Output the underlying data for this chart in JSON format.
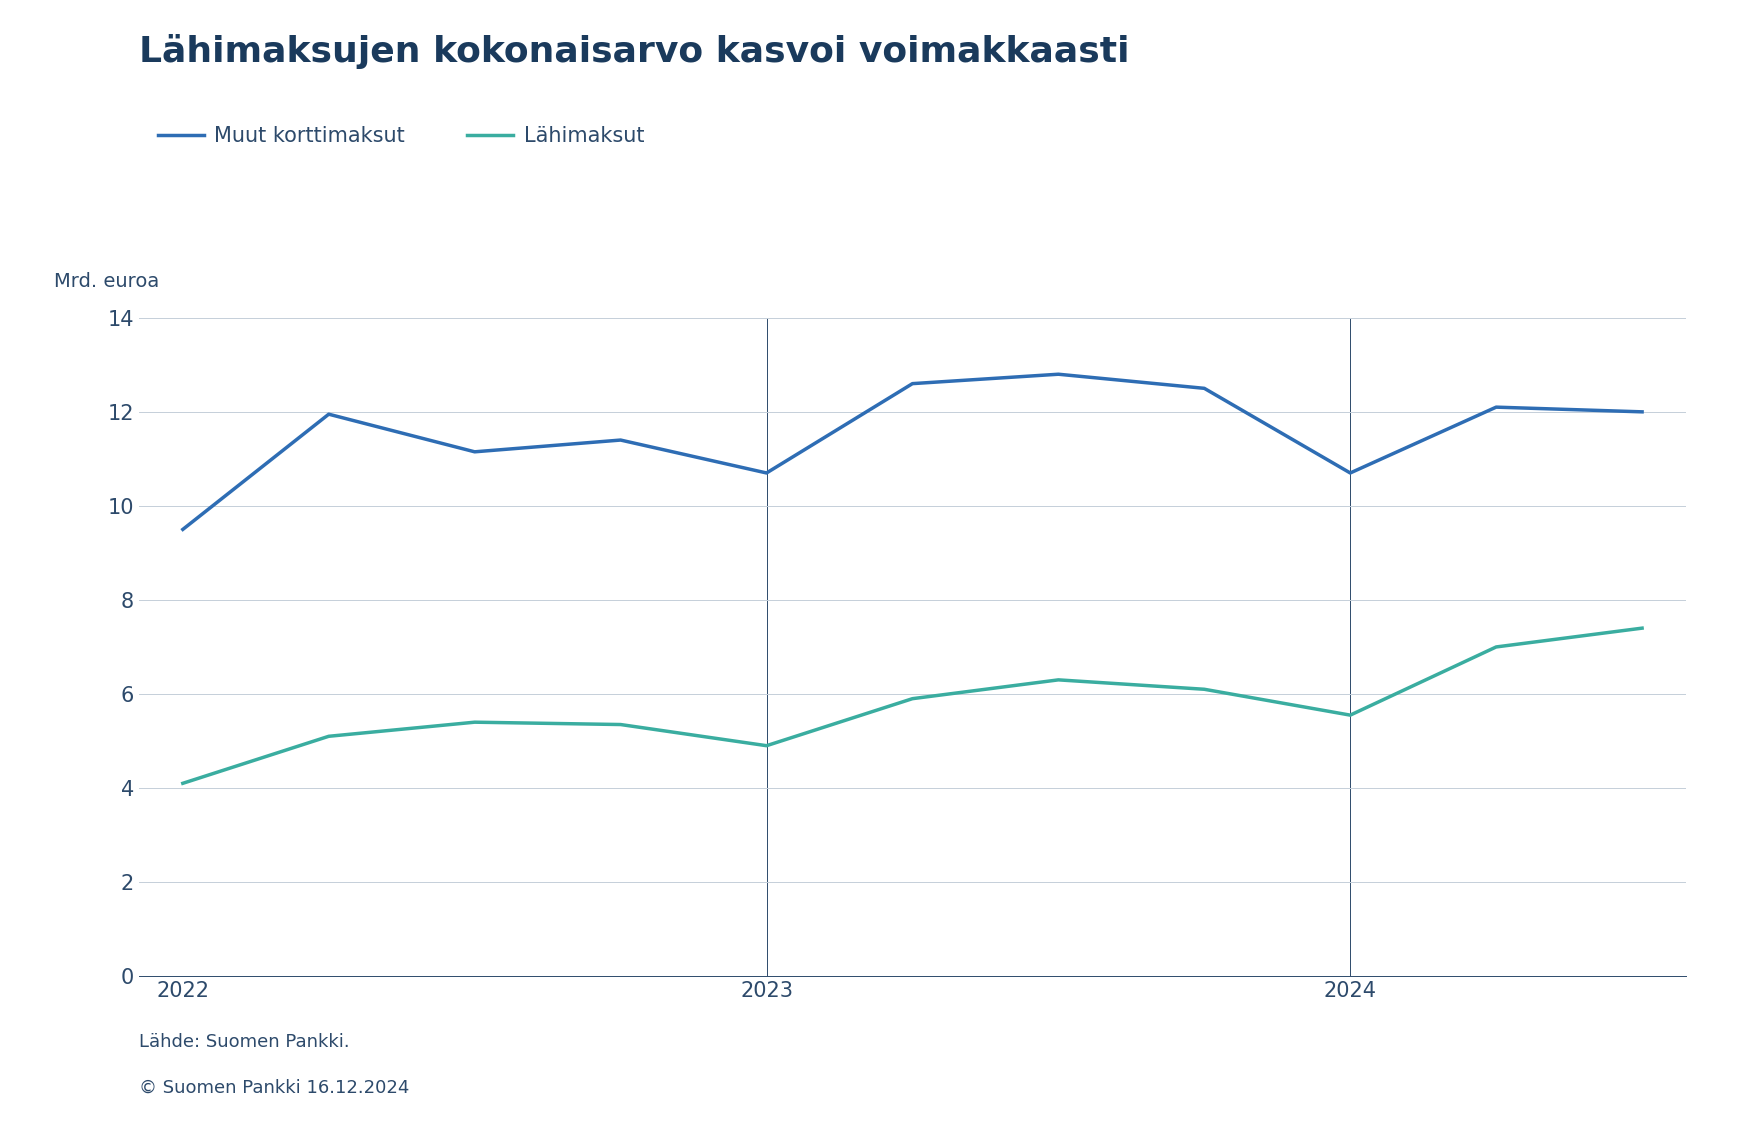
{
  "title": "Lähimaksujen kokonaisarvo kasvoi voimakkaasti",
  "ylabel": "Mrd. euroa",
  "background_color": "#ffffff",
  "plot_bg_color": "#ffffff",
  "title_color": "#1a3a5c",
  "text_color": "#2d4a6b",
  "axis_text_color": "#2d4a6b",
  "grid_color": "#c5cfd9",
  "vline_color": "#2d4a6b",
  "line1_label": "Muut korttimaksut",
  "line2_label": "Lähimaksut",
  "line1_color": "#2e6db4",
  "line2_color": "#3aada0",
  "ylim": [
    0,
    14
  ],
  "yticks": [
    0,
    2,
    4,
    6,
    8,
    10,
    12,
    14
  ],
  "source_line1": "Lähde: Suomen Pankki.",
  "source_line2": "© Suomen Pankki 16.12.2024",
  "x_numeric": [
    0,
    1,
    2,
    3,
    4,
    5,
    6,
    7,
    8,
    9,
    10
  ],
  "muut_korttimaksut": [
    9.5,
    11.95,
    11.15,
    11.4,
    10.7,
    12.6,
    12.8,
    12.5,
    10.7,
    12.1,
    12.0
  ],
  "lahimaksut": [
    4.1,
    5.1,
    5.4,
    5.35,
    4.9,
    5.9,
    6.3,
    6.1,
    5.55,
    7.0,
    7.4
  ],
  "xtick_positions": [
    0,
    4,
    8
  ],
  "xtick_labels": [
    "2022",
    "2023",
    "2024"
  ],
  "vline_positions": [
    4,
    8
  ],
  "legend_fontsize": 15,
  "title_fontsize": 26,
  "ylabel_fontsize": 14,
  "tick_fontsize": 15,
  "source_fontsize": 13,
  "linewidth": 2.5
}
